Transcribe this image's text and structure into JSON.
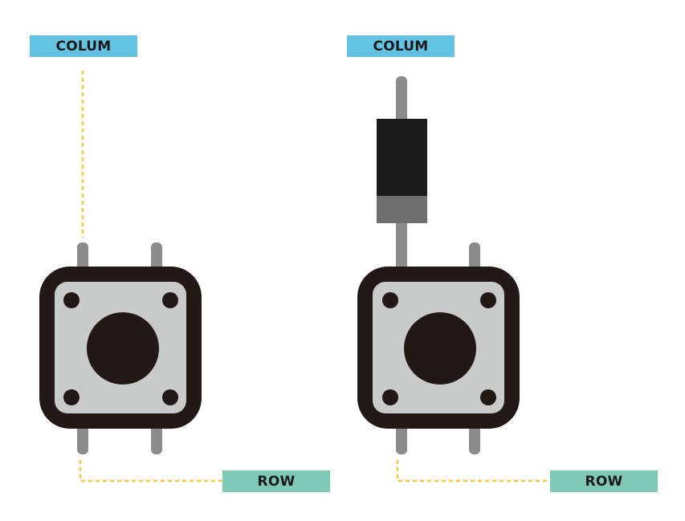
{
  "left": {
    "column_label": "COLUM",
    "row_label": "ROW"
  },
  "right": {
    "column_label": "COLUM",
    "row_label": "ROW"
  },
  "colors": {
    "column_tag": "#64c3e3",
    "row_tag": "#7fc8b5",
    "wire_dashed": "#f2c84b",
    "switch_body": "#231815",
    "switch_plate": "#c9caca",
    "pin": "#8c8c8c",
    "diode_body": "#1a1a1a",
    "diode_band": "#6e6e6e"
  }
}
